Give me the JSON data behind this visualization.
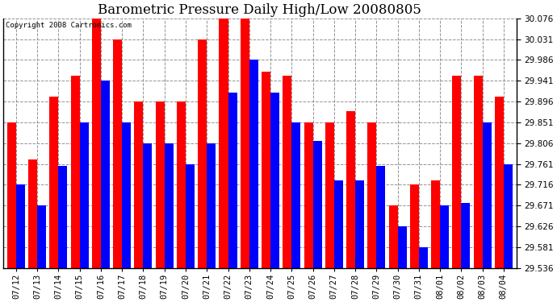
{
  "title": "Barometric Pressure Daily High/Low 20080805",
  "copyright": "Copyright 2008 Cartronics.com",
  "dates": [
    "07/12",
    "07/13",
    "07/14",
    "07/15",
    "07/16",
    "07/17",
    "07/18",
    "07/19",
    "07/20",
    "07/21",
    "07/22",
    "07/23",
    "07/24",
    "07/25",
    "07/26",
    "07/27",
    "07/28",
    "07/29",
    "07/30",
    "07/31",
    "08/01",
    "08/02",
    "08/03",
    "08/04"
  ],
  "high_values": [
    29.851,
    29.771,
    29.906,
    29.951,
    30.076,
    30.031,
    29.896,
    29.896,
    29.896,
    30.031,
    30.076,
    30.076,
    29.961,
    29.951,
    29.851,
    29.851,
    29.876,
    29.851,
    29.671,
    29.716,
    29.726,
    29.951,
    29.951,
    29.906
  ],
  "low_values": [
    29.716,
    29.671,
    29.756,
    29.851,
    29.941,
    29.851,
    29.806,
    29.806,
    29.761,
    29.806,
    29.916,
    29.986,
    29.916,
    29.851,
    29.811,
    29.726,
    29.726,
    29.756,
    29.626,
    29.581,
    29.671,
    29.676,
    29.851,
    29.761
  ],
  "bar_color_high": "#ff0000",
  "bar_color_low": "#0000ff",
  "background_color": "#ffffff",
  "grid_color": "#888888",
  "ymin": 29.536,
  "ymax": 30.076,
  "yticks": [
    29.536,
    29.581,
    29.626,
    29.671,
    29.716,
    29.761,
    29.806,
    29.851,
    29.896,
    29.941,
    29.986,
    30.031,
    30.076
  ],
  "title_fontsize": 12,
  "tick_fontsize": 7.5,
  "copyright_fontsize": 6.5
}
